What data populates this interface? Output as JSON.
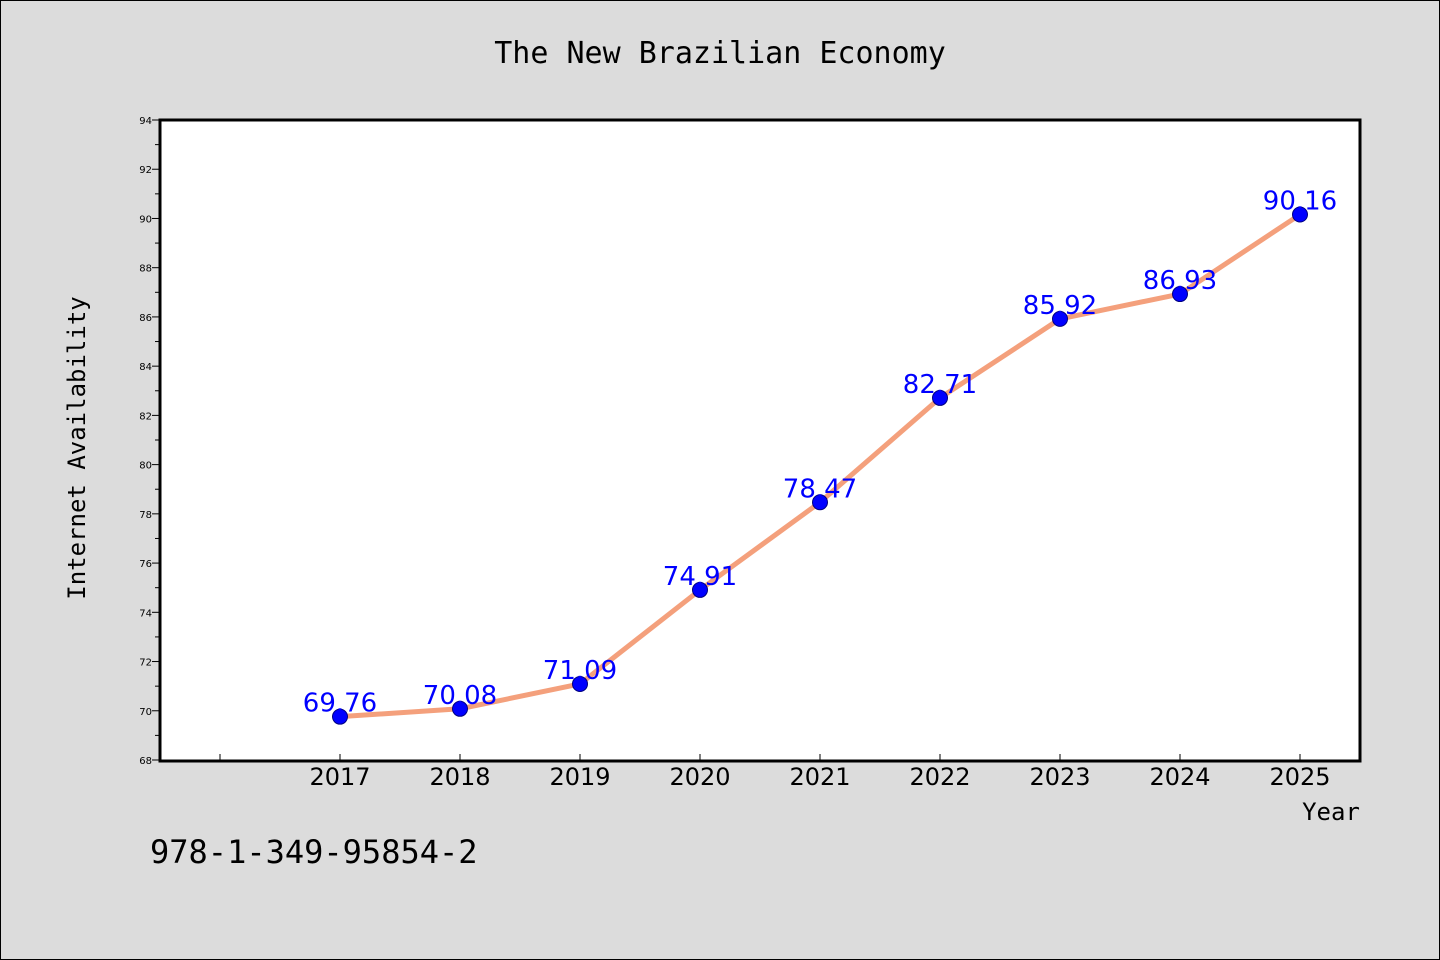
{
  "chart_data": {
    "type": "line",
    "title": "The New Brazilian Economy",
    "xlabel": "Year",
    "ylabel": "Internet Availability",
    "caption": "978-1-349-95854-2",
    "categories": [
      "2017",
      "2018",
      "2019",
      "2020",
      "2021",
      "2022",
      "2023",
      "2024",
      "2025"
    ],
    "series": [
      {
        "values": [
          69.76,
          70.08,
          71.09,
          74.91,
          78.47,
          82.71,
          85.92,
          86.93,
          90.16
        ],
        "labels": [
          "69.76",
          "70.08",
          "71.09",
          "74.91",
          "78.47",
          "82.71",
          "85.92",
          "86.93",
          "90.16"
        ]
      }
    ],
    "ylim": [
      68,
      94
    ],
    "y_ticks": [
      "68",
      "70",
      "72",
      "74",
      "76",
      "78",
      "80",
      "82",
      "84",
      "86",
      "88",
      "90",
      "92",
      "94"
    ],
    "y_minor_step": 1,
    "x_extra_ticks": 1,
    "grid": false,
    "colors": {
      "line": "#f4a07c",
      "marker": "#0000ff",
      "marker_edge": "#000080",
      "data_label": "#0000ff",
      "axes": "#000000",
      "plot_background": "#ffffff",
      "figure_background": "#dcdcdc"
    }
  }
}
